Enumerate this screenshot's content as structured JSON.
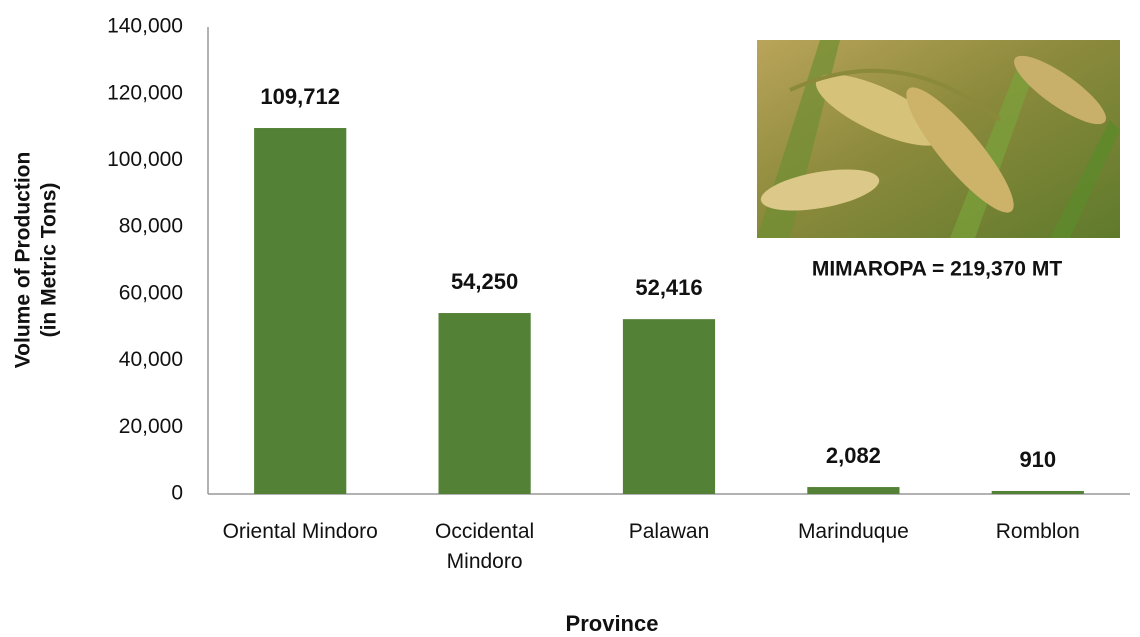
{
  "chart_data": {
    "type": "bar",
    "categories": [
      "Oriental Mindoro",
      "Occidental Mindoro",
      "Palawan",
      "Marinduque",
      "Romblon"
    ],
    "values": [
      109712,
      54250,
      52416,
      2082,
      910
    ],
    "value_labels": [
      "109,712",
      "54,250",
      "52,416",
      "2,082",
      "910"
    ],
    "color": "#538135",
    "ylim": [
      0,
      140000
    ],
    "yticks": [
      0,
      {
        "value": 20000,
        "label": "20,000"
      },
      {
        "value": 40000,
        "label": "40,000"
      },
      {
        "value": 60000,
        "label": "60,000"
      },
      {
        "value": 80000,
        "label": "80,000"
      },
      {
        "value": 100000,
        "label": "100,000"
      },
      {
        "value": 120000,
        "label": "120,000"
      },
      {
        "value": 140000,
        "label": "140,000"
      }
    ],
    "ylabel": [
      "Volume of Production",
      "(in Metric Tons)"
    ],
    "xlabel": "Province",
    "annotation": "MIMAROPA = 219,370 MT",
    "grid": false
  }
}
